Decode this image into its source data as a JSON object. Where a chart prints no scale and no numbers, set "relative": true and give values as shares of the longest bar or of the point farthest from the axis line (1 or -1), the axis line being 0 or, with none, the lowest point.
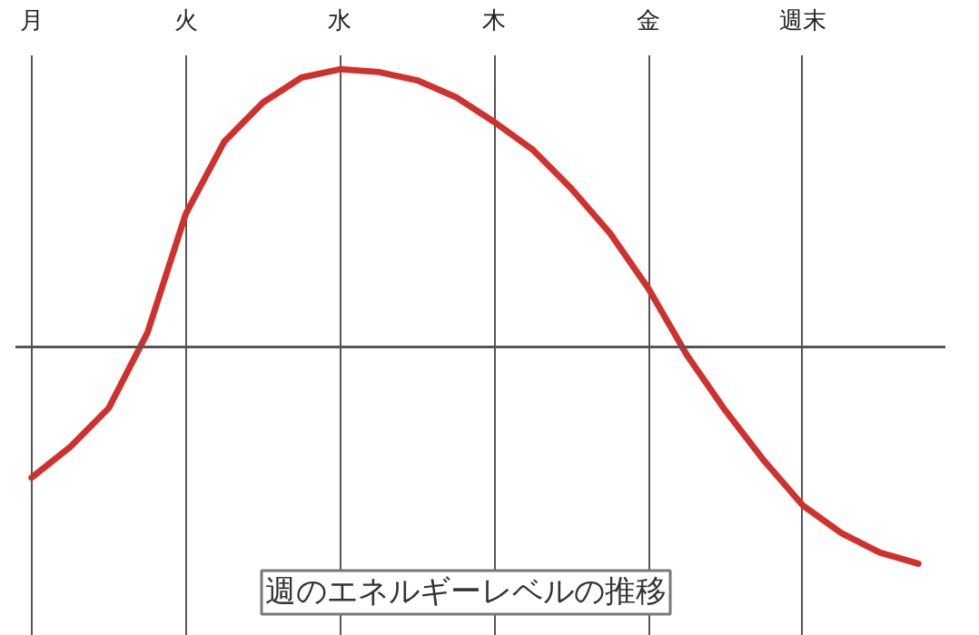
{
  "chart_data": {
    "type": "line",
    "title": "週のエネルギーレベルの推移",
    "relative": true,
    "grid": "x",
    "marker": "none",
    "line_style": "solid",
    "categories": [
      "月",
      null,
      null,
      null,
      "火",
      null,
      null,
      null,
      "水",
      null,
      null,
      null,
      "木",
      null,
      null,
      null,
      "金",
      null,
      null,
      null,
      "週末",
      null,
      null,
      null
    ],
    "series": [
      {
        "color": "#d0312d",
        "values": [
          -0.47,
          -0.36,
          -0.22,
          0.05,
          0.48,
          0.74,
          0.88,
          0.97,
          1.0,
          0.99,
          0.96,
          0.9,
          0.81,
          0.71,
          0.57,
          0.41,
          0.21,
          -0.03,
          -0.23,
          -0.41,
          -0.57,
          -0.67,
          -0.74,
          -0.78
        ]
      }
    ]
  }
}
